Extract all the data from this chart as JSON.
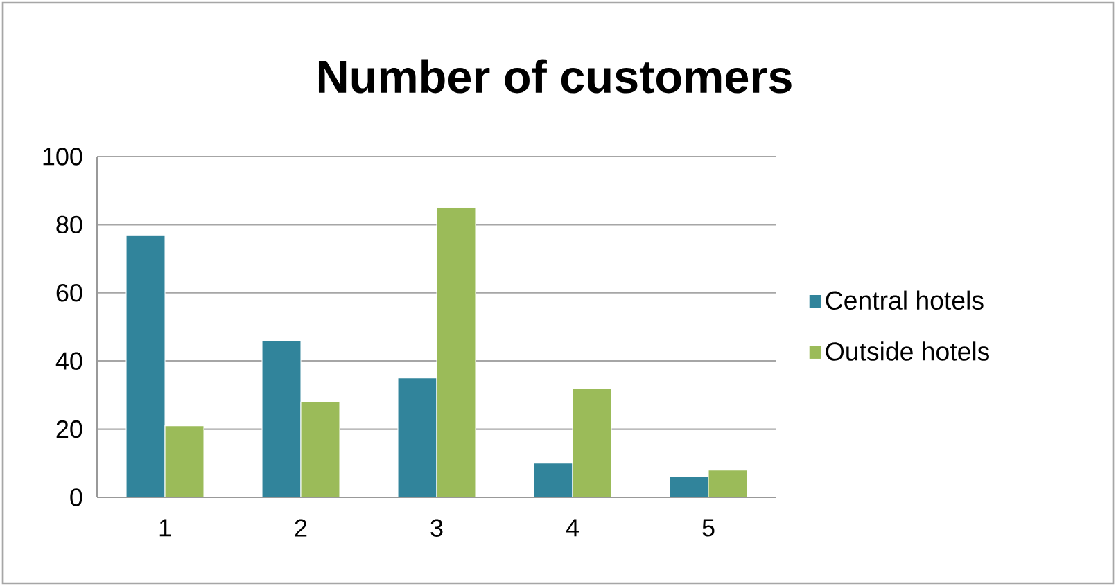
{
  "chart_data": {
    "type": "bar",
    "title": "Number of customers",
    "categories": [
      "1",
      "2",
      "3",
      "4",
      "5"
    ],
    "series": [
      {
        "name": "Central hotels",
        "color": "#31849b",
        "values": [
          77,
          46,
          35,
          10,
          6
        ]
      },
      {
        "name": "Outside hotels",
        "color": "#9bbb59",
        "values": [
          21,
          28,
          85,
          32,
          8
        ]
      }
    ],
    "ylim": [
      0,
      100
    ],
    "yticks": [
      0,
      20,
      40,
      60,
      80,
      100
    ],
    "grid": "y",
    "legend": "right"
  }
}
